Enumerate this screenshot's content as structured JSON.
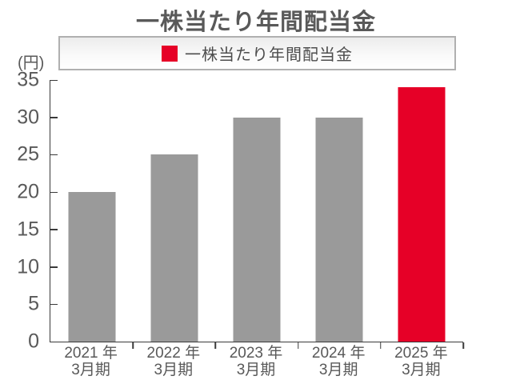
{
  "title": "一株当たり年間配当金",
  "legend": {
    "label": "一株当たり年間配当金",
    "swatch_color": "#e60027"
  },
  "y_axis": {
    "unit": "(円)",
    "min": 0,
    "max": 35,
    "step": 5
  },
  "colors": {
    "bar_default": "#9a9a9a",
    "bar_highlight": "#e60027",
    "axis": "#3a3a3a",
    "text": "#595959",
    "legend_border": "#b0b0b0"
  },
  "chart_data": {
    "type": "bar",
    "title": "一株当たり年間配当金",
    "unit": "(円)",
    "categories": [
      [
        "2021 年",
        "3月期"
      ],
      [
        "2022 年",
        "3月期"
      ],
      [
        "2023 年",
        "3月期"
      ],
      [
        "2024 年",
        "3月期"
      ],
      [
        "2025 年",
        "3月期"
      ]
    ],
    "values": [
      20,
      25,
      30,
      30,
      34
    ],
    "highlight_index": 4,
    "ylim": [
      0,
      35
    ],
    "ytick_step": 5,
    "grid": false,
    "legend": {
      "position": "top",
      "entries": [
        {
          "label": "一株当たり年間配当金",
          "color": "#e60027"
        }
      ]
    }
  }
}
